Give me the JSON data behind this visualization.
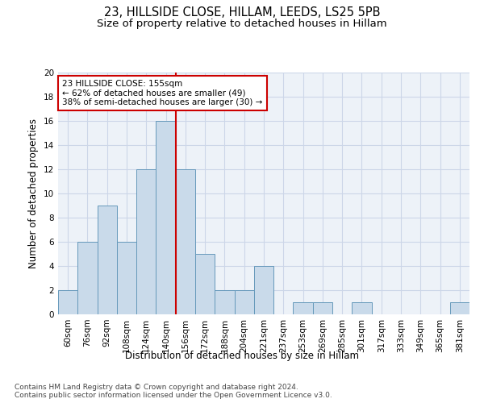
{
  "title": "23, HILLSIDE CLOSE, HILLAM, LEEDS, LS25 5PB",
  "subtitle": "Size of property relative to detached houses in Hillam",
  "xlabel": "Distribution of detached houses by size in Hillam",
  "ylabel": "Number of detached properties",
  "categories": [
    "60sqm",
    "76sqm",
    "92sqm",
    "108sqm",
    "124sqm",
    "140sqm",
    "156sqm",
    "172sqm",
    "188sqm",
    "204sqm",
    "221sqm",
    "237sqm",
    "253sqm",
    "269sqm",
    "285sqm",
    "301sqm",
    "317sqm",
    "333sqm",
    "349sqm",
    "365sqm",
    "381sqm"
  ],
  "values": [
    2,
    6,
    9,
    6,
    12,
    16,
    12,
    5,
    2,
    2,
    4,
    0,
    1,
    1,
    0,
    1,
    0,
    0,
    0,
    0,
    1
  ],
  "bar_color": "#c9daea",
  "bar_edgecolor": "#6699bb",
  "bar_linewidth": 0.7,
  "vline_x_index": 6,
  "vline_color": "#cc0000",
  "vline_linewidth": 1.5,
  "annotation_text": "23 HILLSIDE CLOSE: 155sqm\n← 62% of detached houses are smaller (49)\n38% of semi-detached houses are larger (30) →",
  "annotation_box_edgecolor": "#cc0000",
  "annotation_box_facecolor": "#ffffff",
  "ylim": [
    0,
    20
  ],
  "yticks": [
    0,
    2,
    4,
    6,
    8,
    10,
    12,
    14,
    16,
    18,
    20
  ],
  "grid_color": "#ccd6e8",
  "background_color": "#edf2f8",
  "footer_line1": "Contains HM Land Registry data © Crown copyright and database right 2024.",
  "footer_line2": "Contains public sector information licensed under the Open Government Licence v3.0.",
  "title_fontsize": 10.5,
  "subtitle_fontsize": 9.5,
  "xlabel_fontsize": 8.5,
  "ylabel_fontsize": 8.5,
  "tick_fontsize": 7.5,
  "annotation_fontsize": 7.5,
  "footer_fontsize": 6.5
}
